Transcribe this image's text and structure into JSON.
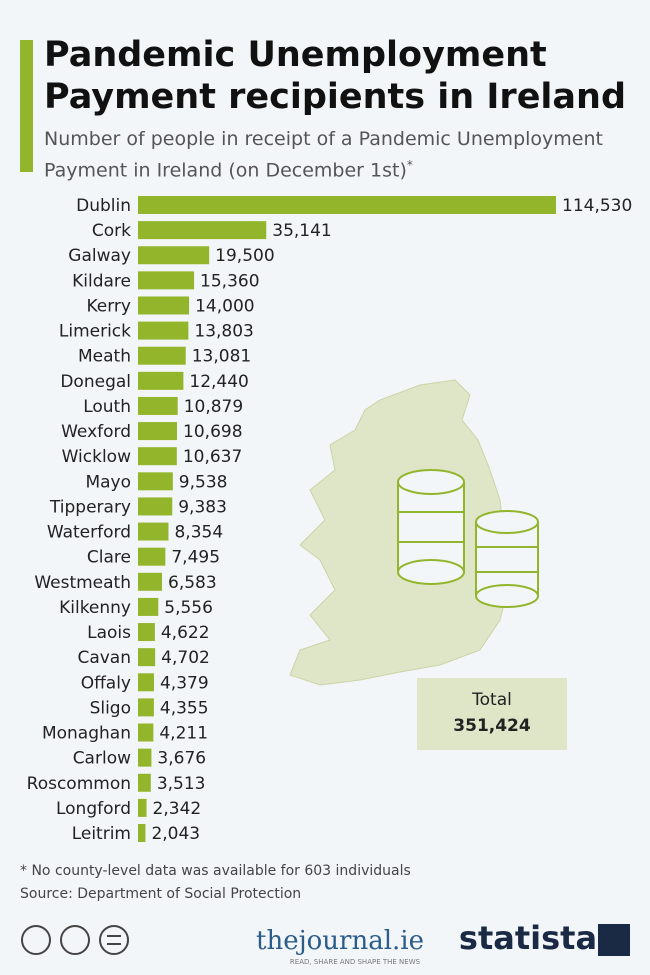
{
  "chart_data": {
    "type": "bar",
    "orientation": "horizontal",
    "title": "Pandemic Unemployment Payment recipients in Ireland",
    "subtitle": "Number of people in receipt of a Pandemic Unemployment Payment in Ireland (on December 1st)",
    "subtitle_mark": "*",
    "categories": [
      "Dublin",
      "Cork",
      "Galway",
      "Kildare",
      "Kerry",
      "Limerick",
      "Meath",
      "Donegal",
      "Louth",
      "Wexford",
      "Wicklow",
      "Mayo",
      "Tipperary",
      "Waterford",
      "Clare",
      "Westmeath",
      "Kilkenny",
      "Laois",
      "Cavan",
      "Offaly",
      "Sligo",
      "Monaghan",
      "Carlow",
      "Roscommon",
      "Longford",
      "Leitrim"
    ],
    "values": [
      114530,
      35141,
      19500,
      15360,
      14000,
      13803,
      13081,
      12440,
      10879,
      10698,
      10637,
      9538,
      9383,
      8354,
      7495,
      6583,
      5556,
      4622,
      4702,
      4379,
      4355,
      4211,
      3676,
      3513,
      2342,
      2043
    ],
    "value_labels": [
      "114,530",
      "35,141",
      "19,500",
      "15,360",
      "14,000",
      "13,803",
      "13,081",
      "12,440",
      "10,879",
      "10,698",
      "10,637",
      "9,538",
      "9,383",
      "8,354",
      "7,495",
      "6,583",
      "5,556",
      "4,622",
      "4,702",
      "4,379",
      "4,355",
      "4,211",
      "3,676",
      "3,513",
      "2,342",
      "2,043"
    ],
    "color": "#93b52b",
    "total": {
      "label": "Total",
      "value_label": "351,424"
    },
    "footnote": "* No county-level data was available for 603 individuals",
    "source": "Source: Department of Social Protection",
    "logos": {
      "journal": "thejournal.ie",
      "journal_tagline": "READ, SHARE AND SHAPE THE NEWS",
      "statista": "statista"
    }
  }
}
